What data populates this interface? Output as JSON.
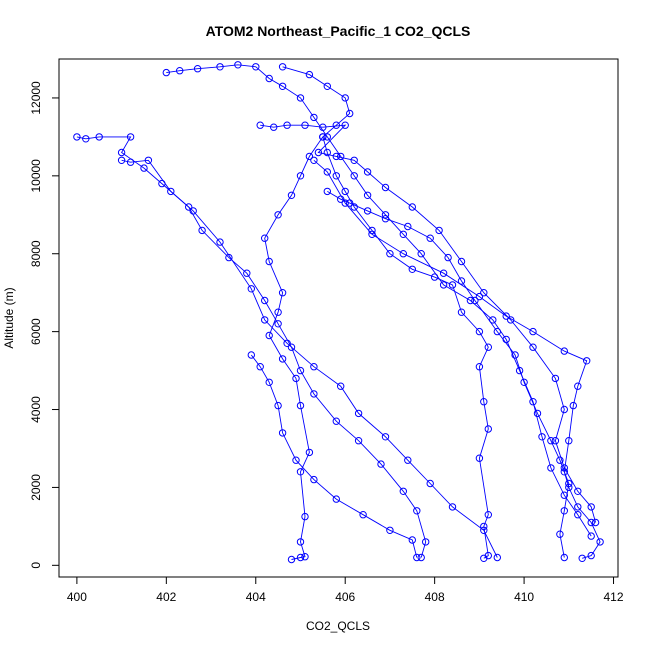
{
  "chart_data": {
    "type": "scatter",
    "title": "ATOM2 Northeast_Pacific_1 CO2_QCLS",
    "xlabel": "CO2_QCLS",
    "ylabel": "Altitude (m)",
    "xlim": [
      399.6,
      412.1
    ],
    "ylim": [
      -300,
      13000
    ],
    "xticks": [
      400,
      402,
      404,
      406,
      408,
      410,
      412
    ],
    "yticks": [
      0,
      2000,
      4000,
      6000,
      8000,
      10000,
      12000
    ],
    "grid": false,
    "connected": true,
    "color": "#0000ff",
    "series": [
      {
        "values": [
          [
            404.8,
            150
          ],
          [
            405.0,
            200
          ],
          [
            405.1,
            220
          ],
          [
            405.0,
            600
          ],
          [
            405.1,
            1250
          ],
          [
            405.0,
            2400
          ],
          [
            405.2,
            2900
          ],
          [
            405.0,
            4100
          ],
          [
            404.9,
            4800
          ],
          [
            404.6,
            5300
          ],
          [
            404.3,
            5900
          ],
          [
            404.5,
            6500
          ],
          [
            404.6,
            7000
          ],
          [
            404.3,
            7800
          ],
          [
            404.2,
            8400
          ],
          [
            404.5,
            9000
          ],
          [
            404.8,
            9500
          ],
          [
            405.0,
            10000
          ],
          [
            405.2,
            10500
          ],
          [
            405.5,
            11000
          ],
          [
            405.8,
            11300
          ],
          [
            406.1,
            11600
          ],
          [
            406.0,
            12000
          ],
          [
            405.6,
            12300
          ],
          [
            405.2,
            12600
          ],
          [
            404.6,
            12800
          ]
        ]
      },
      {
        "values": [
          [
            409.1,
            180
          ],
          [
            409.2,
            250
          ],
          [
            409.1,
            1000
          ],
          [
            409.2,
            1300
          ],
          [
            409.0,
            2750
          ],
          [
            409.2,
            3500
          ],
          [
            409.1,
            4200
          ],
          [
            409.0,
            5100
          ],
          [
            409.2,
            5600
          ],
          [
            409.0,
            6000
          ],
          [
            408.6,
            6500
          ],
          [
            408.4,
            7200
          ],
          [
            408.0,
            7400
          ],
          [
            407.5,
            7600
          ],
          [
            407.0,
            8000
          ],
          [
            406.6,
            8600
          ],
          [
            406.2,
            9200
          ],
          [
            406.0,
            9600
          ],
          [
            405.8,
            10000
          ],
          [
            405.6,
            10600
          ],
          [
            405.5,
            11000
          ]
        ]
      },
      {
        "values": [
          [
            411.3,
            180
          ],
          [
            411.5,
            250
          ],
          [
            411.7,
            600
          ],
          [
            411.5,
            1100
          ],
          [
            411.2,
            1500
          ],
          [
            411.0,
            2000
          ],
          [
            410.9,
            2400
          ],
          [
            411.0,
            3200
          ],
          [
            411.1,
            4100
          ],
          [
            411.2,
            4600
          ],
          [
            411.4,
            5250
          ],
          [
            410.9,
            5500
          ],
          [
            410.2,
            6000
          ],
          [
            409.6,
            6400
          ],
          [
            409.0,
            6900
          ],
          [
            408.2,
            7500
          ],
          [
            407.3,
            8000
          ],
          [
            406.6,
            8500
          ],
          [
            406.0,
            9300
          ],
          [
            405.6,
            10100
          ],
          [
            405.3,
            10400
          ]
        ]
      },
      {
        "values": [
          [
            400.0,
            11000
          ],
          [
            400.2,
            10950
          ],
          [
            400.5,
            11000
          ],
          [
            401.2,
            11000
          ],
          [
            401.0,
            10600
          ],
          [
            401.5,
            10200
          ],
          [
            401.9,
            9800
          ],
          [
            402.5,
            9200
          ],
          [
            402.8,
            8600
          ],
          [
            403.4,
            7900
          ],
          [
            403.8,
            7500
          ],
          [
            404.2,
            6800
          ],
          [
            404.5,
            6200
          ],
          [
            404.8,
            5600
          ],
          [
            405.0,
            5000
          ],
          [
            405.3,
            4400
          ],
          [
            405.8,
            3700
          ],
          [
            406.3,
            3200
          ],
          [
            406.8,
            2600
          ],
          [
            407.3,
            1900
          ],
          [
            407.6,
            1400
          ],
          [
            407.8,
            600
          ],
          [
            407.7,
            200
          ]
        ]
      },
      {
        "values": [
          [
            402.0,
            12650
          ],
          [
            402.3,
            12700
          ],
          [
            402.7,
            12750
          ],
          [
            403.2,
            12800
          ],
          [
            403.6,
            12850
          ],
          [
            404.0,
            12800
          ],
          [
            404.3,
            12500
          ],
          [
            404.6,
            12300
          ],
          [
            405.0,
            12000
          ],
          [
            405.3,
            11500
          ],
          [
            405.6,
            11000
          ],
          [
            405.9,
            10500
          ],
          [
            406.2,
            10000
          ],
          [
            406.5,
            9500
          ],
          [
            406.9,
            9000
          ],
          [
            407.3,
            8500
          ],
          [
            407.7,
            8000
          ],
          [
            408.2,
            7200
          ],
          [
            408.8,
            6800
          ],
          [
            409.3,
            6300
          ],
          [
            409.6,
            5800
          ],
          [
            409.9,
            5000
          ],
          [
            410.2,
            4200
          ],
          [
            410.4,
            3300
          ],
          [
            410.6,
            2500
          ],
          [
            410.9,
            1800
          ],
          [
            411.2,
            1300
          ],
          [
            411.5,
            750
          ]
        ]
      },
      {
        "values": [
          [
            401.0,
            10400
          ],
          [
            401.2,
            10350
          ],
          [
            401.6,
            10400
          ],
          [
            402.1,
            9600
          ],
          [
            402.6,
            9100
          ],
          [
            403.2,
            8300
          ],
          [
            403.9,
            7100
          ],
          [
            404.2,
            6300
          ],
          [
            404.7,
            5700
          ],
          [
            405.3,
            5100
          ],
          [
            405.9,
            4600
          ],
          [
            406.3,
            3900
          ],
          [
            406.9,
            3300
          ],
          [
            407.4,
            2700
          ],
          [
            407.9,
            2100
          ],
          [
            408.4,
            1500
          ],
          [
            409.1,
            900
          ],
          [
            409.4,
            200
          ]
        ]
      },
      {
        "values": [
          [
            404.1,
            11300
          ],
          [
            404.4,
            11250
          ],
          [
            404.7,
            11300
          ],
          [
            405.1,
            11300
          ],
          [
            405.5,
            11250
          ],
          [
            406.0,
            11300
          ],
          [
            405.4,
            10600
          ],
          [
            405.8,
            10500
          ],
          [
            406.2,
            10400
          ],
          [
            406.5,
            10100
          ],
          [
            406.9,
            9700
          ],
          [
            407.5,
            9200
          ],
          [
            408.1,
            8600
          ],
          [
            408.6,
            7800
          ],
          [
            409.1,
            7000
          ],
          [
            409.7,
            6300
          ],
          [
            410.2,
            5600
          ],
          [
            410.7,
            4800
          ],
          [
            410.9,
            4000
          ],
          [
            410.7,
            3200
          ],
          [
            410.9,
            2500
          ],
          [
            411.2,
            1900
          ],
          [
            411.5,
            1500
          ],
          [
            411.6,
            1100
          ]
        ]
      },
      {
        "values": [
          [
            403.9,
            5400
          ],
          [
            404.1,
            5100
          ],
          [
            404.3,
            4700
          ],
          [
            404.5,
            4100
          ],
          [
            404.6,
            3400
          ],
          [
            404.9,
            2700
          ],
          [
            405.3,
            2200
          ],
          [
            405.8,
            1700
          ],
          [
            406.4,
            1300
          ],
          [
            407.0,
            900
          ],
          [
            407.5,
            650
          ],
          [
            407.6,
            200
          ]
        ]
      },
      {
        "values": [
          [
            405.6,
            9600
          ],
          [
            405.9,
            9400
          ],
          [
            406.1,
            9300
          ],
          [
            406.5,
            9100
          ],
          [
            406.9,
            8900
          ],
          [
            407.4,
            8700
          ],
          [
            407.9,
            8400
          ],
          [
            408.3,
            7900
          ],
          [
            408.6,
            7300
          ],
          [
            408.9,
            6800
          ],
          [
            409.4,
            6000
          ],
          [
            409.8,
            5400
          ],
          [
            410.0,
            4700
          ],
          [
            410.3,
            3900
          ],
          [
            410.6,
            3200
          ],
          [
            410.8,
            2700
          ],
          [
            411.0,
            2100
          ],
          [
            410.9,
            1400
          ],
          [
            410.8,
            800
          ],
          [
            410.9,
            200
          ]
        ]
      }
    ]
  }
}
